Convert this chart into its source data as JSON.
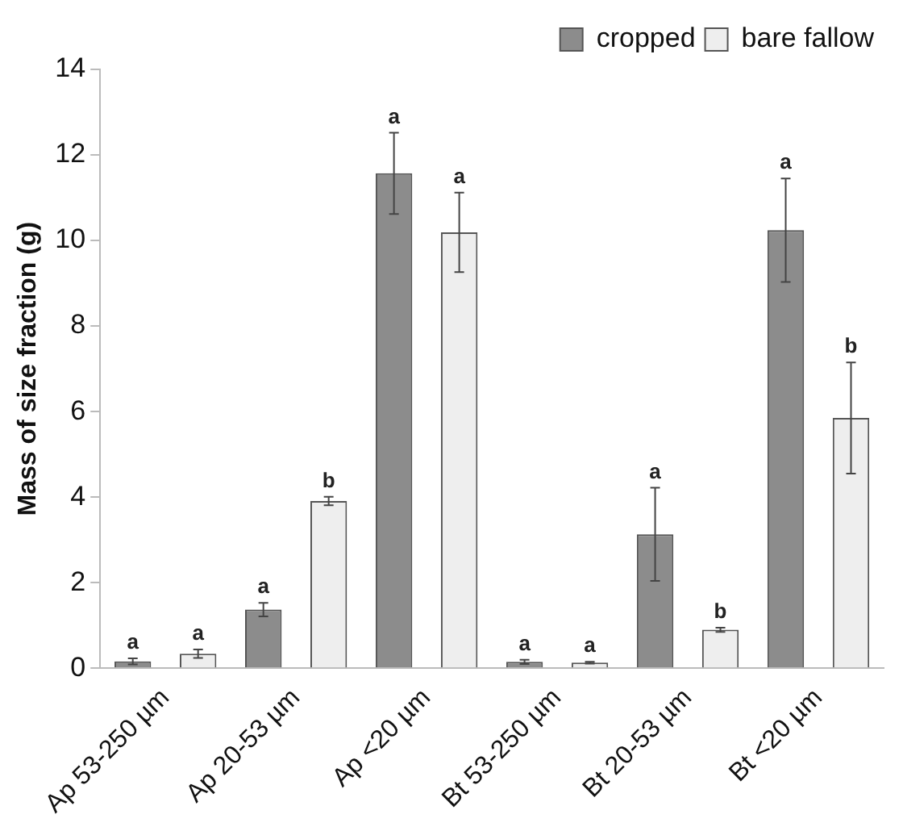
{
  "chart_data": {
    "type": "bar",
    "ylabel": "Mass of size fraction (g)",
    "categories": [
      "Ap 53-250 µm",
      "Ap 20-53 µm",
      "Ap <20 µm",
      "Bt 53-250 µm",
      "Bt 20-53 µm",
      "Bt <20 µm"
    ],
    "series": [
      {
        "name": "cropped",
        "color": "#8c8c8c",
        "values": [
          0.16,
          1.37,
          11.57,
          0.15,
          3.13,
          10.24
        ],
        "errors": [
          0.07,
          0.16,
          0.95,
          0.05,
          1.09,
          1.21
        ],
        "value_labels": [
          "a",
          "a",
          "a",
          "a",
          "a",
          "a"
        ]
      },
      {
        "name": "bare fallow",
        "color": "#eeeeee",
        "values": [
          0.34,
          3.91,
          10.19,
          0.13,
          0.9,
          5.85
        ],
        "errors": [
          0.1,
          0.1,
          0.93,
          0.02,
          0.05,
          1.3
        ],
        "value_labels": [
          "a",
          "b",
          "a",
          "a",
          "b",
          "b"
        ]
      }
    ],
    "ylim": [
      0,
      14
    ],
    "yticks": [
      0,
      2,
      4,
      6,
      8,
      10,
      12,
      14
    ],
    "grid": false,
    "legend": "top right"
  }
}
